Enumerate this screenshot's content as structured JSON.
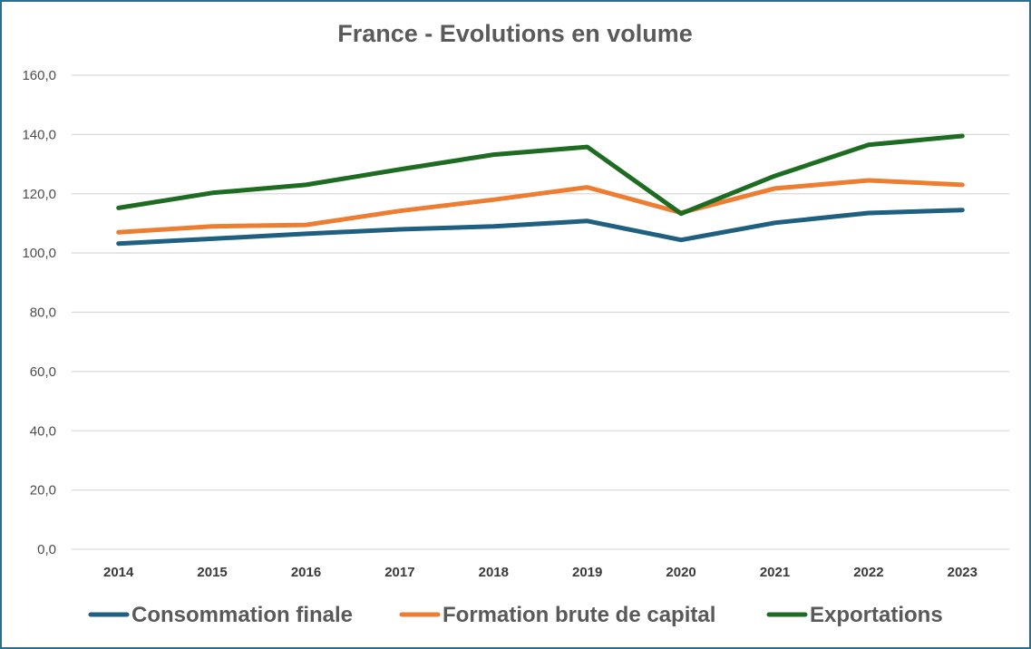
{
  "chart_data": {
    "type": "line",
    "title": "France - Evolutions en volume",
    "xlabel": "",
    "ylabel": "",
    "categories": [
      "2014",
      "2015",
      "2016",
      "2017",
      "2018",
      "2019",
      "2020",
      "2021",
      "2022",
      "2023"
    ],
    "ylim": [
      0,
      160
    ],
    "yticks": [
      "0,0",
      "20,0",
      "40,0",
      "60,0",
      "80,0",
      "100,0",
      "120,0",
      "140,0",
      "160,0"
    ],
    "grid": true,
    "legend_position": "bottom",
    "series": [
      {
        "name": "Consommation finale",
        "color": "#1f5f80",
        "values": [
          103.2,
          104.8,
          106.5,
          108.0,
          109.0,
          110.8,
          104.4,
          110.2,
          113.5,
          114.5
        ]
      },
      {
        "name": "Formation brute de capital",
        "color": "#ed7d31",
        "values": [
          107.0,
          109.0,
          109.5,
          114.2,
          118.0,
          122.2,
          113.6,
          121.8,
          124.5,
          123.0
        ]
      },
      {
        "name": "Exportations",
        "color": "#1e6b22",
        "values": [
          115.2,
          120.3,
          123.0,
          128.2,
          133.2,
          135.8,
          113.3,
          126.0,
          136.5,
          139.5
        ]
      }
    ]
  }
}
